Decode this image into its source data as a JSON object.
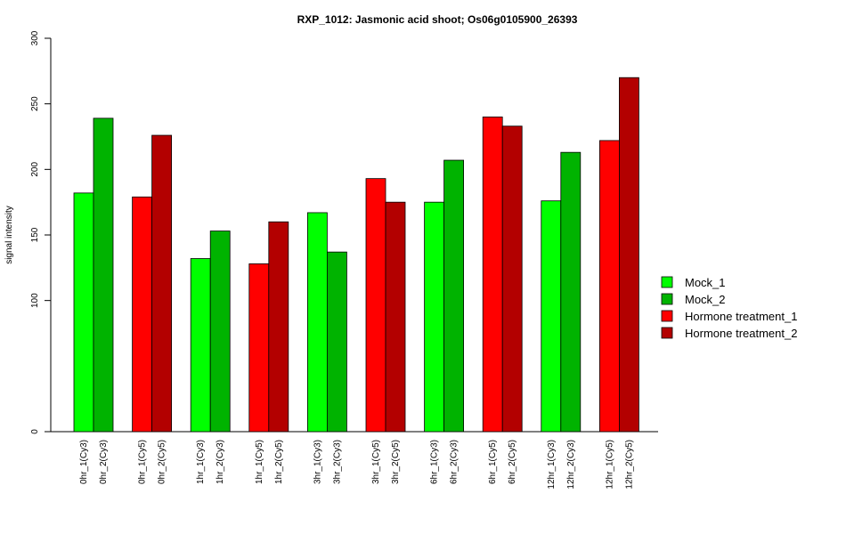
{
  "chart_data": {
    "type": "bar",
    "title": "RXP_1012: Jasmonic acid shoot; Os06g0105900_26393",
    "xlabel": "",
    "ylabel": "signal intensity",
    "ylim": [
      0,
      300
    ],
    "y_ticks": [
      0,
      100,
      150,
      200,
      250,
      300
    ],
    "grid": false,
    "legend_position": "right",
    "series": [
      {
        "name": "Mock_1",
        "color": "#00ff00"
      },
      {
        "name": "Mock_2",
        "color": "#00b300"
      },
      {
        "name": "Hormone treatment_1",
        "color": "#ff0000"
      },
      {
        "name": "Hormone treatment_2",
        "color": "#b30000"
      }
    ],
    "bars": [
      {
        "label": "0hr_1(Cy3)",
        "value": 182,
        "series": 0
      },
      {
        "label": "0hr_2(Cy3)",
        "value": 239,
        "series": 1
      },
      {
        "label": "0hr_1(Cy5)",
        "value": 179,
        "series": 2
      },
      {
        "label": "0hr_2(Cy5)",
        "value": 226,
        "series": 3
      },
      {
        "label": "1hr_1(Cy3)",
        "value": 132,
        "series": 0
      },
      {
        "label": "1hr_2(Cy3)",
        "value": 153,
        "series": 1
      },
      {
        "label": "1hr_1(Cy5)",
        "value": 128,
        "series": 2
      },
      {
        "label": "1hr_2(Cy5)",
        "value": 160,
        "series": 3
      },
      {
        "label": "3hr_1(Cy3)",
        "value": 167,
        "series": 0
      },
      {
        "label": "3hr_2(Cy3)",
        "value": 137,
        "series": 1
      },
      {
        "label": "3hr_1(Cy5)",
        "value": 193,
        "series": 2
      },
      {
        "label": "3hr_2(Cy5)",
        "value": 175,
        "series": 3
      },
      {
        "label": "6hr_1(Cy3)",
        "value": 175,
        "series": 0
      },
      {
        "label": "6hr_2(Cy3)",
        "value": 207,
        "series": 1
      },
      {
        "label": "6hr_1(Cy5)",
        "value": 240,
        "series": 2
      },
      {
        "label": "6hr_2(Cy5)",
        "value": 233,
        "series": 3
      },
      {
        "label": "12hr_1(Cy3)",
        "value": 176,
        "series": 0
      },
      {
        "label": "12hr_2(Cy3)",
        "value": 213,
        "series": 1
      },
      {
        "label": "12hr_1(Cy5)",
        "value": 222,
        "series": 2
      },
      {
        "label": "12hr_2(Cy5)",
        "value": 270,
        "series": 3
      }
    ]
  }
}
